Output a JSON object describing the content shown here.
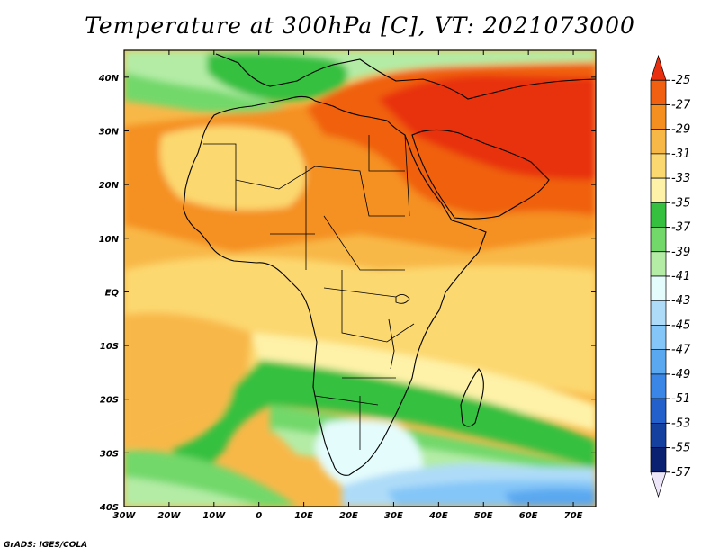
{
  "title": "Temperature at 300hPa [C], VT: 2021073000",
  "credit": "GrADS: IGES/COLA",
  "map": {
    "variable": "Temperature at 300hPa",
    "units": "C",
    "valid_time": "2021073000",
    "lon_range": [
      -30,
      75
    ],
    "lat_range": [
      -40,
      45
    ],
    "lon_ticks": [
      "30W",
      "20W",
      "10W",
      "0",
      "10E",
      "20E",
      "30E",
      "40E",
      "50E",
      "60E",
      "70E"
    ],
    "lat_ticks": [
      "40N",
      "30N",
      "20N",
      "10N",
      "EQ",
      "10S",
      "20S",
      "30S",
      "40S"
    ]
  },
  "colorbar": {
    "labels": [
      "-25",
      "-27",
      "-29",
      "-31",
      "-33",
      "-35",
      "-37",
      "-39",
      "-41",
      "-43",
      "-45",
      "-47",
      "-49",
      "-51",
      "-53",
      "-55",
      "-57"
    ],
    "colors": [
      "#e83010",
      "#f06010",
      "#f59020",
      "#f8b848",
      "#fcd870",
      "#fef2a8",
      "#36c040",
      "#72d86a",
      "#b4eca6",
      "#e4fcfc",
      "#aedcf8",
      "#84c6f8",
      "#5aa8f0",
      "#3a86e6",
      "#2460cc",
      "#1440a0",
      "#0a2070",
      "#ece6f8"
    ],
    "over_color": "#e83010",
    "under_color": "#ece6f8"
  }
}
